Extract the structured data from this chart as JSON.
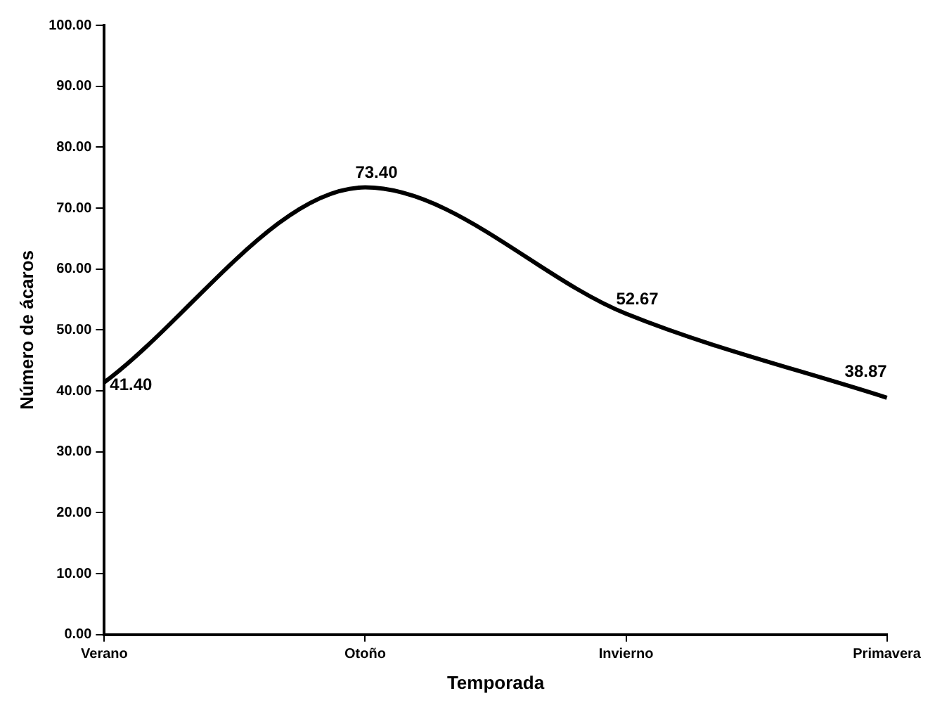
{
  "chart_data": {
    "type": "line",
    "xlabel": "Temporada",
    "ylabel": "Número de ácaros",
    "categories": [
      "Verano",
      "Otoño",
      "Invierno",
      "Primavera"
    ],
    "series": [
      {
        "color": "#000000",
        "values": [
          41.4,
          73.4,
          52.67,
          38.87
        ],
        "value_labels": [
          "41.40",
          "73.40",
          "52.67",
          "38.87"
        ]
      }
    ],
    "ylim": [
      0,
      100
    ],
    "yticks": [
      {
        "value": 0,
        "label": "0.00"
      },
      {
        "value": 10,
        "label": "10.00"
      },
      {
        "value": 20,
        "label": "20.00"
      },
      {
        "value": 30,
        "label": "30.00"
      },
      {
        "value": 40,
        "label": "40.00"
      },
      {
        "value": 50,
        "label": "50.00"
      },
      {
        "value": 60,
        "label": "60.00"
      },
      {
        "value": 70,
        "label": "70.00"
      },
      {
        "value": 80,
        "label": "80.00"
      },
      {
        "value": 90,
        "label": "90.00"
      },
      {
        "value": 100,
        "label": "100.00"
      }
    ],
    "grid": false,
    "legend": false,
    "marker": "none",
    "line_style": "solid"
  }
}
